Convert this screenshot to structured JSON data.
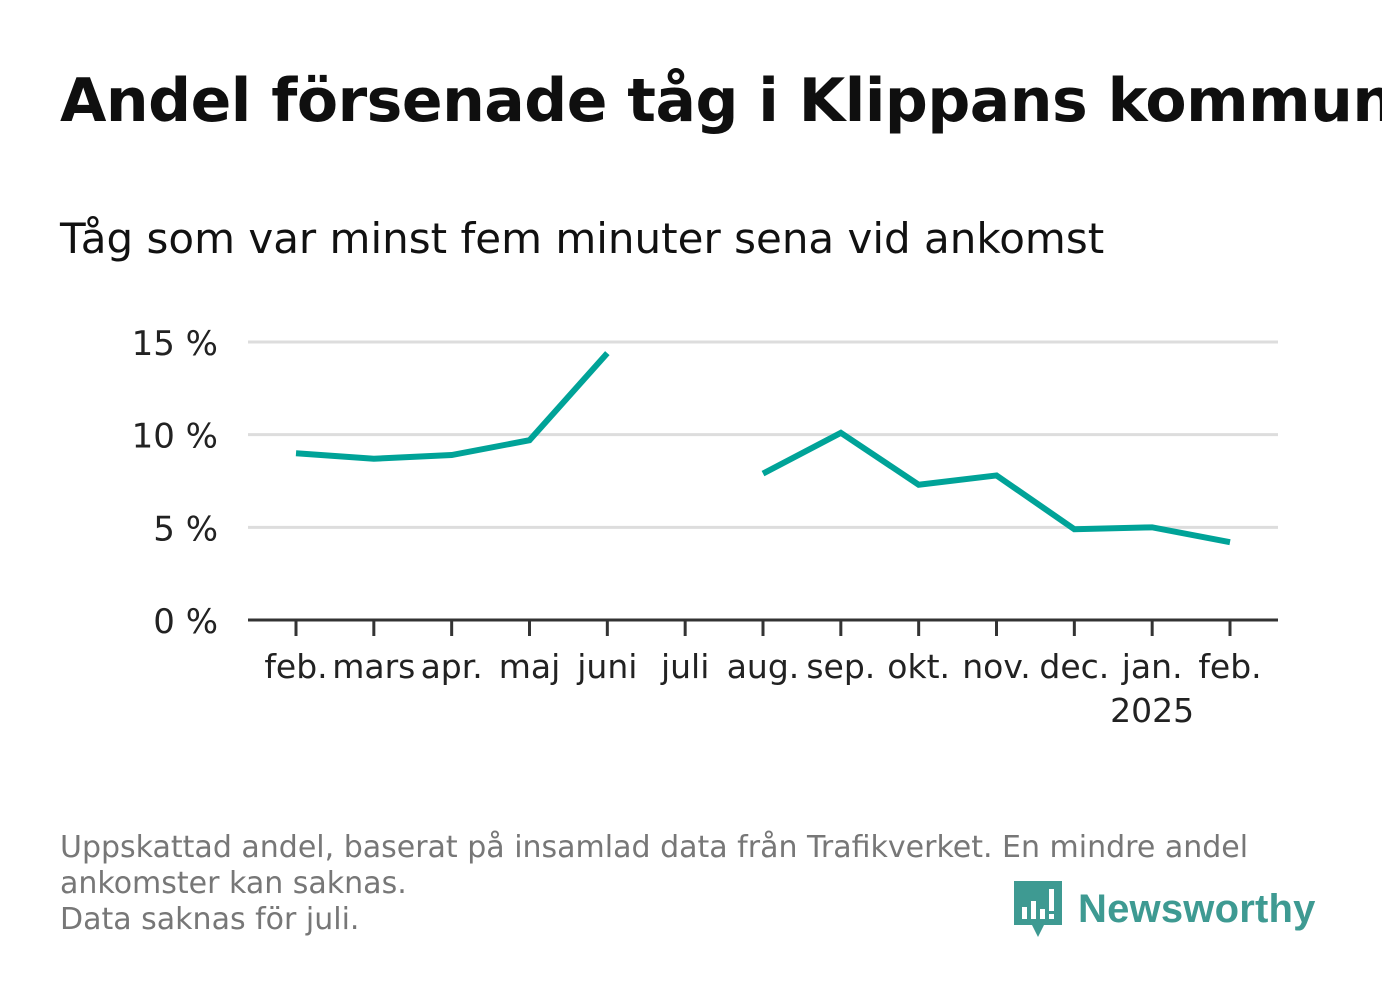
{
  "title": "Andel försenade tåg i Klippans kommun",
  "subtitle": "Tåg som var minst fem minuter sena vid ankomst",
  "footnote": {
    "line1": "Uppskattad andel, baserat på insamlad data från Trafikverket. En mindre andel",
    "line2": "ankomster kan saknas.",
    "line3": "Data saknas för juli."
  },
  "logo": {
    "text": "Newsworthy",
    "icon": "newsworthy-bar-chart-speech-bubble-icon",
    "color": "#3e9a92"
  },
  "colors": {
    "line": "#00a398",
    "grid": "#dddddd",
    "axis": "#333333"
  },
  "chart_data": {
    "type": "line",
    "categories": [
      "feb.",
      "mars",
      "apr.",
      "maj",
      "juni",
      "juli",
      "aug.",
      "sep.",
      "okt.",
      "nov.",
      "dec.",
      "jan.",
      "feb."
    ],
    "year_label": "2025",
    "year_label_under": 11,
    "series": [
      {
        "values": [
          9.0,
          8.7,
          8.9,
          9.7,
          14.4,
          null,
          7.9,
          10.1,
          7.3,
          7.8,
          4.9,
          5.0,
          4.2
        ]
      }
    ],
    "y_ticks": [
      0,
      5,
      10,
      15
    ],
    "y_tick_labels": [
      "0 %",
      "5 %",
      "10 %",
      "15 %"
    ],
    "ylim": [
      0,
      15
    ],
    "grid": true,
    "legend": "none"
  }
}
